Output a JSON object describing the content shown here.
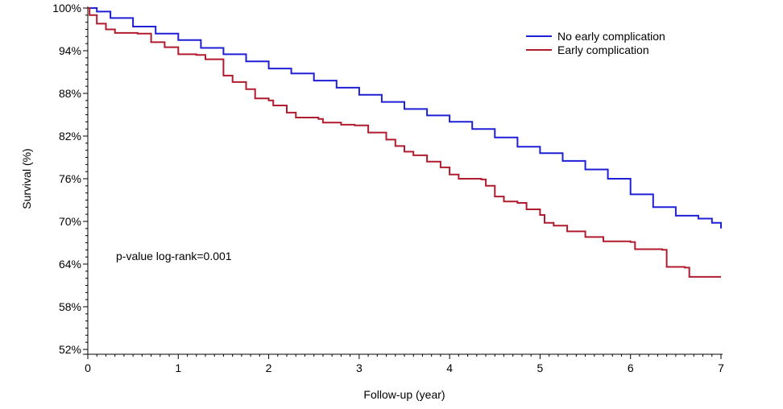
{
  "chart_data": {
    "type": "line",
    "step": true,
    "xlabel": "Follow-up (year)",
    "ylabel": "Survival (%)",
    "xlim": [
      0,
      7
    ],
    "ylim": [
      52,
      100
    ],
    "x_ticks": [
      0,
      1,
      2,
      3,
      4,
      5,
      6,
      7
    ],
    "y_ticks": [
      52,
      58,
      64,
      70,
      76,
      82,
      88,
      94,
      100
    ],
    "y_tick_labels": [
      "52%",
      "58%",
      "64%",
      "70%",
      "76%",
      "82%",
      "88%",
      "94%",
      "100%"
    ],
    "grid": false,
    "legend": "top-right",
    "annotation": "p-value log-rank=0.001",
    "series": [
      {
        "name": "No early complication",
        "color": "#1f1fd6",
        "points": [
          [
            0,
            100
          ],
          [
            0.1,
            99.5
          ],
          [
            0.25,
            98.6
          ],
          [
            0.5,
            97.4
          ],
          [
            0.75,
            96.4
          ],
          [
            1.0,
            95.5
          ],
          [
            1.25,
            94.4
          ],
          [
            1.5,
            93.5
          ],
          [
            1.75,
            92.5
          ],
          [
            2.0,
            91.5
          ],
          [
            2.25,
            90.8
          ],
          [
            2.5,
            89.8
          ],
          [
            2.75,
            88.8
          ],
          [
            3.0,
            87.8
          ],
          [
            3.25,
            86.8
          ],
          [
            3.5,
            85.8
          ],
          [
            3.75,
            84.9
          ],
          [
            4.0,
            84.0
          ],
          [
            4.25,
            83.0
          ],
          [
            4.5,
            81.8
          ],
          [
            4.75,
            80.5
          ],
          [
            5.0,
            79.6
          ],
          [
            5.25,
            78.5
          ],
          [
            5.5,
            77.3
          ],
          [
            5.75,
            76.0
          ],
          [
            6.0,
            73.8
          ],
          [
            6.25,
            72.0
          ],
          [
            6.5,
            70.8
          ],
          [
            6.75,
            70.4
          ],
          [
            6.9,
            69.8
          ],
          [
            7.0,
            69.0
          ]
        ]
      },
      {
        "name": "Early complication",
        "color": "#b01c2e",
        "points": [
          [
            0,
            100
          ],
          [
            0.02,
            99.0
          ],
          [
            0.1,
            97.8
          ],
          [
            0.2,
            97.0
          ],
          [
            0.3,
            96.5
          ],
          [
            0.55,
            96.4
          ],
          [
            0.7,
            95.2
          ],
          [
            0.85,
            94.5
          ],
          [
            1.0,
            93.5
          ],
          [
            1.2,
            93.4
          ],
          [
            1.3,
            92.8
          ],
          [
            1.5,
            90.5
          ],
          [
            1.6,
            89.6
          ],
          [
            1.75,
            88.6
          ],
          [
            1.85,
            87.3
          ],
          [
            2.0,
            87.0
          ],
          [
            2.05,
            86.3
          ],
          [
            2.2,
            85.3
          ],
          [
            2.3,
            84.6
          ],
          [
            2.55,
            84.4
          ],
          [
            2.6,
            83.9
          ],
          [
            2.8,
            83.6
          ],
          [
            2.95,
            83.5
          ],
          [
            3.1,
            82.5
          ],
          [
            3.3,
            81.5
          ],
          [
            3.4,
            80.6
          ],
          [
            3.5,
            79.8
          ],
          [
            3.6,
            79.3
          ],
          [
            3.75,
            78.4
          ],
          [
            3.9,
            77.6
          ],
          [
            4.0,
            76.6
          ],
          [
            4.1,
            76.0
          ],
          [
            4.35,
            75.9
          ],
          [
            4.4,
            75.0
          ],
          [
            4.5,
            73.5
          ],
          [
            4.6,
            72.8
          ],
          [
            4.75,
            72.6
          ],
          [
            4.85,
            71.7
          ],
          [
            5.0,
            70.9
          ],
          [
            5.05,
            69.8
          ],
          [
            5.15,
            69.4
          ],
          [
            5.3,
            68.6
          ],
          [
            5.5,
            67.8
          ],
          [
            5.7,
            67.2
          ],
          [
            6.0,
            67.1
          ],
          [
            6.05,
            66.1
          ],
          [
            6.35,
            66.0
          ],
          [
            6.4,
            63.6
          ],
          [
            6.6,
            63.5
          ],
          [
            6.65,
            62.2
          ],
          [
            7.0,
            62.2
          ]
        ]
      }
    ]
  }
}
